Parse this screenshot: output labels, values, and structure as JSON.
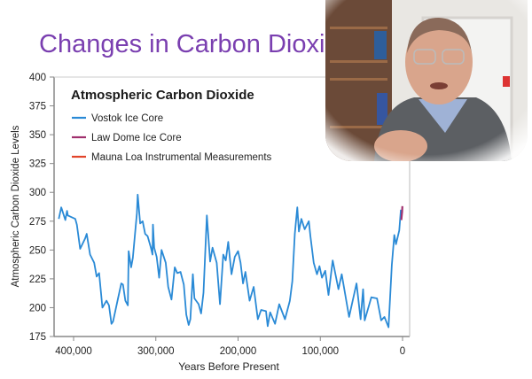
{
  "slide": {
    "title": "Changes in Carbon Dioxide"
  },
  "video_overlay": {
    "description_icon": "presenter-webcam"
  },
  "chart_data": {
    "type": "line",
    "title": "Atmospheric Carbon Dioxide",
    "xlabel": "Years Before Present",
    "ylabel": "Atmospheric Carbon Dioxide Levels",
    "xlim": [
      420000,
      0
    ],
    "ylim": [
      175,
      400
    ],
    "x_reversed": true,
    "xticks": [
      400000,
      300000,
      200000,
      100000,
      0
    ],
    "xtick_labels": [
      "400,000",
      "300,000",
      "200,000",
      "100,000",
      "0"
    ],
    "yticks": [
      175,
      200,
      225,
      250,
      275,
      300,
      325,
      350,
      375,
      400
    ],
    "ytick_labels": [
      "175",
      "200",
      "225",
      "250",
      "275",
      "300",
      "325",
      "350",
      "375",
      "400"
    ],
    "grid": false,
    "legend_placement": "top-left",
    "series": [
      {
        "name": "Vostok Ice Core",
        "color": "#2a8ad6",
        "x": [
          418000,
          415000,
          410000,
          408000,
          407000,
          398000,
          396000,
          392000,
          386000,
          384000,
          380000,
          375000,
          372000,
          369000,
          365000,
          360000,
          357000,
          354000,
          352000,
          346000,
          342000,
          340000,
          337000,
          334000,
          333000,
          330000,
          328000,
          323000,
          322000,
          319000,
          316000,
          313000,
          310000,
          306000,
          304000,
          303500,
          302000,
          299000,
          296000,
          293000,
          288000,
          285000,
          281000,
          277000,
          274000,
          270000,
          266000,
          263000,
          260000,
          258000,
          255000,
          253000,
          248000,
          245000,
          242000,
          238000,
          234000,
          231000,
          226000,
          222000,
          218000,
          215000,
          212000,
          208000,
          204000,
          200000,
          197000,
          194000,
          191000,
          186000,
          181000,
          176000,
          172000,
          166000,
          164000,
          161000,
          155000,
          150000,
          143000,
          137000,
          134000,
          131000,
          128000,
          126000,
          123000,
          119000,
          114000,
          112000,
          108000,
          104000,
          101000,
          98000,
          94000,
          90000,
          85000,
          78000,
          74000,
          65000,
          56000,
          51000,
          48000,
          46000,
          38000,
          31000,
          26000,
          22000,
          17000,
          13000,
          10000,
          8000,
          4000,
          2000
        ],
        "y": [
          277,
          287,
          276,
          284,
          280,
          277,
          272,
          251,
          260,
          264,
          246,
          239,
          227,
          230,
          200,
          206,
          202,
          186,
          188,
          208,
          221,
          220,
          206,
          202,
          249,
          235,
          243,
          282,
          298,
          273,
          275,
          264,
          262,
          252,
          246,
          272,
          252,
          244,
          226,
          250,
          239,
          218,
          207,
          235,
          230,
          231,
          220,
          194,
          185,
          190,
          229,
          208,
          203,
          195,
          213,
          280,
          240,
          252,
          239,
          203,
          246,
          241,
          257,
          229,
          244,
          249,
          239,
          221,
          231,
          206,
          218,
          190,
          198,
          197,
          184,
          196,
          186,
          203,
          190,
          206,
          223,
          264,
          287,
          266,
          277,
          268,
          275,
          262,
          239,
          229,
          236,
          226,
          232,
          211,
          241,
          216,
          229,
          192,
          221,
          190,
          216,
          189,
          209,
          208,
          189,
          192,
          183,
          237,
          263,
          255,
          267,
          285
        ]
      },
      {
        "name": "Law Dome Ice Core",
        "color": "#a0306e",
        "x": [
          1500,
          1000,
          500,
          200
        ],
        "y": [
          276,
          280,
          283,
          288
        ]
      },
      {
        "name": "Mauna Loa Instrumental Measurements",
        "color": "#e2452b",
        "x": [],
        "y": []
      }
    ]
  }
}
